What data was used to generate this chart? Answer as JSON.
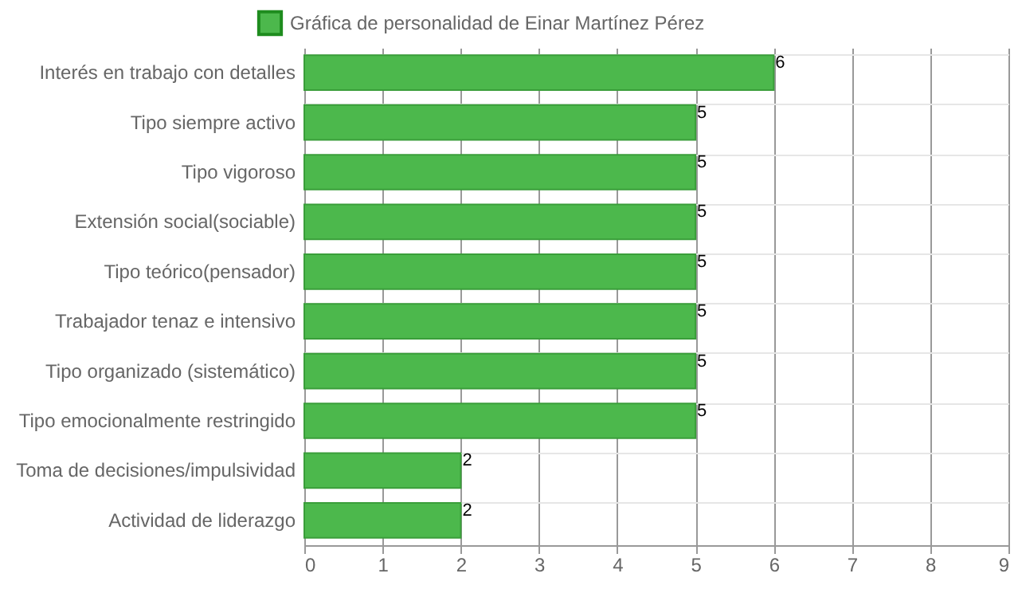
{
  "chart_data": {
    "type": "bar",
    "orientation": "horizontal",
    "categories": [
      "Interés en trabajo con detalles",
      "Tipo siempre activo",
      "Tipo vigoroso",
      "Extensión social(sociable)",
      "Tipo teórico(pensador)",
      "Trabajador tenaz e intensivo",
      "Tipo organizado (sistemático)",
      "Tipo emocionalmente restringido",
      "Toma de decisiones/impulsividad",
      "Actividad de liderazgo"
    ],
    "series": [
      {
        "name": "Gráfica de personalidad de Einar Martínez Pérez",
        "color": "#4cb84c",
        "values": [
          6,
          5,
          5,
          5,
          5,
          5,
          5,
          5,
          2,
          2
        ]
      }
    ],
    "xlim": [
      0,
      9
    ],
    "xticks": [
      0,
      1,
      2,
      3,
      4,
      5,
      6,
      7,
      8,
      9
    ],
    "grid": true,
    "legend": "top",
    "data_labels": true
  }
}
